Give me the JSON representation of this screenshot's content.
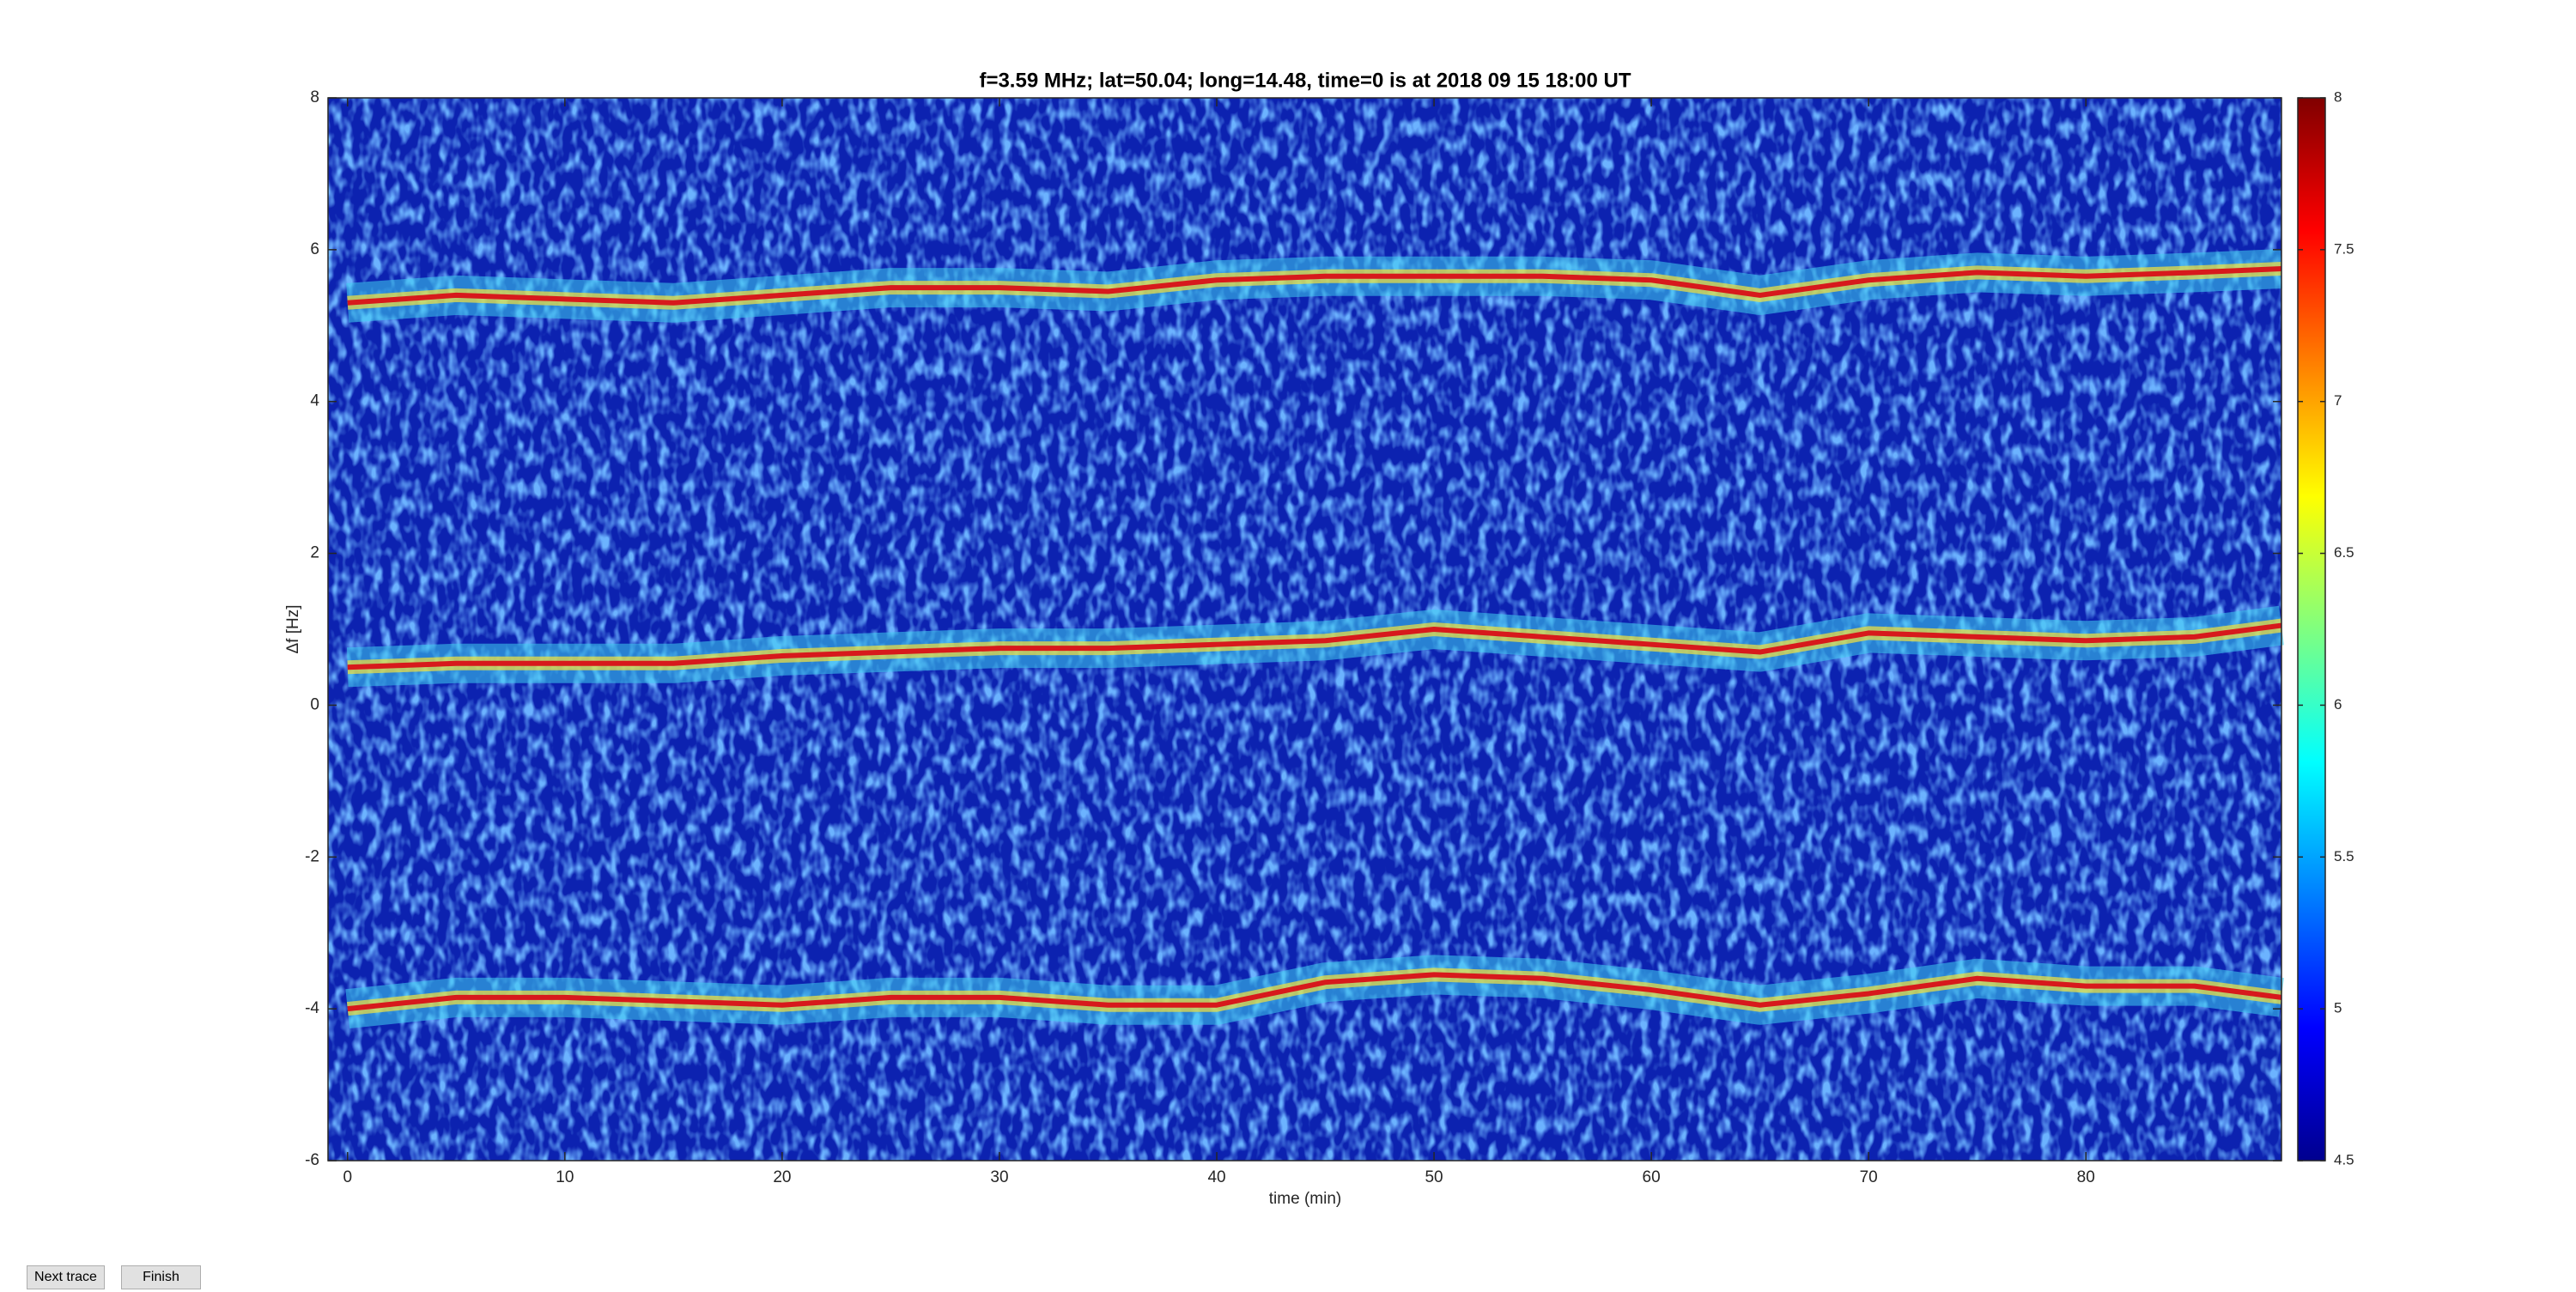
{
  "chart_data": {
    "type": "line",
    "title": "f=3.59 MHz;  lat=50.04; long=14.48, time=0 is at 2018 09 15 18:00 UT",
    "x_label": "time (min)",
    "y_label": "Δf [Hz]",
    "x": [
      0,
      5,
      10,
      15,
      20,
      25,
      30,
      35,
      40,
      45,
      50,
      55,
      60,
      65,
      70,
      75,
      80,
      85,
      89
    ],
    "series": [
      {
        "color": "#d7191c",
        "values": [
          5.3,
          5.4,
          5.35,
          5.3,
          5.4,
          5.5,
          5.5,
          5.45,
          5.6,
          5.65,
          5.65,
          5.65,
          5.6,
          5.4,
          5.6,
          5.7,
          5.65,
          5.7,
          5.75
        ]
      },
      {
        "color": "#d7191c",
        "values": [
          0.5,
          0.55,
          0.55,
          0.55,
          0.65,
          0.7,
          0.75,
          0.75,
          0.8,
          0.85,
          1.0,
          0.9,
          0.8,
          0.7,
          0.95,
          0.9,
          0.85,
          0.9,
          1.05
        ]
      },
      {
        "color": "#d7191c",
        "values": [
          -4.0,
          -3.85,
          -3.85,
          -3.9,
          -3.95,
          -3.85,
          -3.85,
          -3.95,
          -3.95,
          -3.65,
          -3.55,
          -3.6,
          -3.75,
          -3.95,
          -3.8,
          -3.6,
          -3.7,
          -3.7,
          -3.85
        ]
      }
    ],
    "xlim": [
      -0.9,
      89
    ],
    "xticks": [
      0,
      10,
      20,
      30,
      40,
      50,
      60,
      70,
      80
    ],
    "ylim": [
      -6,
      8
    ],
    "yticks": [
      -6,
      -4,
      -2,
      0,
      2,
      4,
      6,
      8
    ],
    "colormap": "jet",
    "clim": [
      4.5,
      8
    ],
    "cticks": [
      4.5,
      5,
      5.5,
      6,
      6.5,
      7,
      7.5,
      8
    ]
  },
  "controls": {
    "next_button": "Next trace",
    "finish_button": "Finish"
  }
}
